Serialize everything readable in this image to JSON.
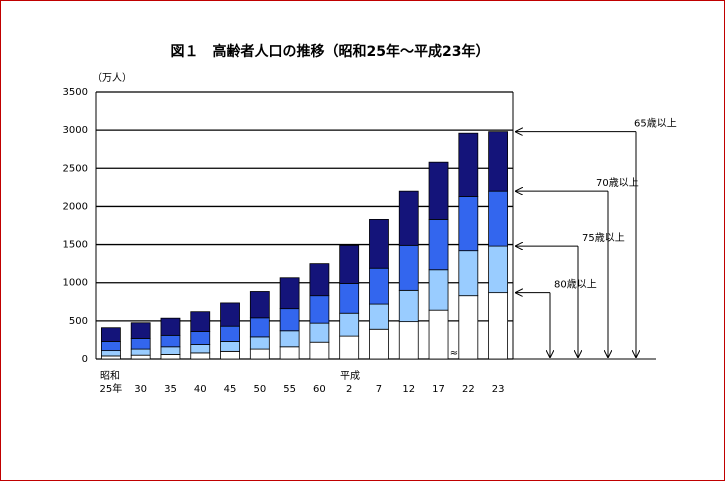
{
  "chart_data": {
    "type": "stacked-bar",
    "title": "図１　高齢者人口の推移（昭和25年～平成23年）",
    "unit_label": "（万人）",
    "era_labels": [
      "昭和",
      "平成"
    ],
    "categories": [
      "25年",
      "30",
      "35",
      "40",
      "45",
      "50",
      "55",
      "60",
      "2",
      "7",
      "12",
      "17",
      "22",
      "23"
    ],
    "series": [
      {
        "name": "80歳以上",
        "color": "#ffffff",
        "values": [
          40,
          50,
          60,
          80,
          100,
          130,
          160,
          220,
          300,
          390,
          490,
          640,
          830,
          870
        ]
      },
      {
        "name": "75歳以上",
        "color": "#99ccff",
        "values": [
          70,
          80,
          100,
          110,
          130,
          160,
          210,
          250,
          300,
          330,
          410,
          530,
          590,
          610
        ]
      },
      {
        "name": "70歳以上",
        "color": "#3366ee",
        "values": [
          120,
          140,
          150,
          170,
          200,
          250,
          290,
          360,
          390,
          470,
          590,
          660,
          710,
          720
        ]
      },
      {
        "name": "65歳以上",
        "color": "#14147a",
        "values": [
          180,
          205,
          225,
          260,
          305,
          345,
          405,
          420,
          500,
          640,
          710,
          750,
          830,
          780
        ]
      }
    ],
    "ylim": [
      0,
      3500
    ],
    "yticks": [
      0,
      500,
      1000,
      1500,
      2000,
      2500,
      3000,
      3500
    ],
    "grid": true
  }
}
